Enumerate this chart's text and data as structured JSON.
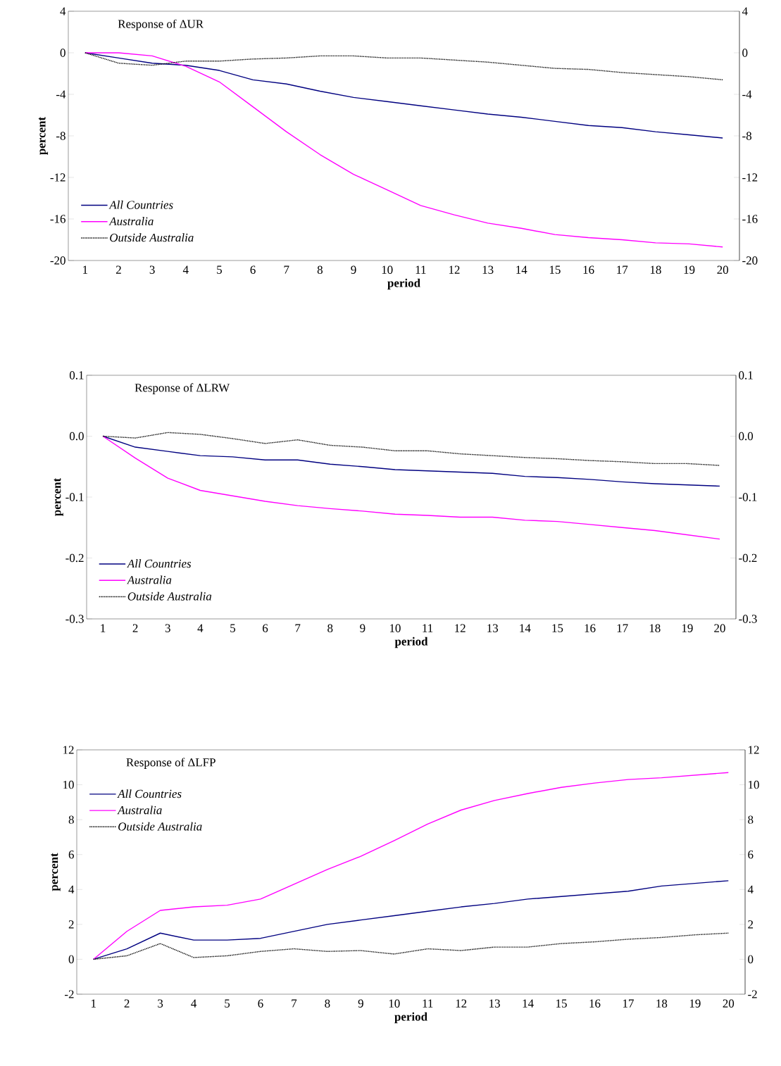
{
  "chart_data": [
    {
      "type": "line",
      "title": "Response of ΔUR",
      "xlabel": "period",
      "ylabel": "percent",
      "categories": [
        "1",
        "2",
        "3",
        "4",
        "5",
        "6",
        "7",
        "8",
        "9",
        "10",
        "11",
        "12",
        "13",
        "14",
        "15",
        "16",
        "17",
        "18",
        "19",
        "20"
      ],
      "series": [
        {
          "name": "All Countries",
          "color": "#000080",
          "line_style": "solid",
          "values": [
            0,
            -0.5,
            -1,
            -1.2,
            -1.7,
            -2.6,
            -3.0,
            -3.7,
            -4.3,
            -4.7,
            -5.1,
            -5.5,
            -5.9,
            -6.2,
            -6.6,
            -7.0,
            -7.2,
            -7.6,
            -7.9,
            -8.2
          ]
        },
        {
          "name": "Australia",
          "color": "#ff00ff",
          "line_style": "solid",
          "values": [
            0,
            0,
            -0.3,
            -1.3,
            -2.8,
            -5.2,
            -7.6,
            -9.8,
            -11.7,
            -13.2,
            -14.7,
            -15.6,
            -16.4,
            -16.9,
            -17.5,
            -17.8,
            -18.0,
            -18.3,
            -18.4,
            -18.7
          ]
        },
        {
          "name": "Outside Australia",
          "color": "#000000",
          "line_style": "dotted",
          "values": [
            0,
            -1,
            -1.2,
            -0.8,
            -0.8,
            -0.6,
            -0.5,
            -0.3,
            -0.3,
            -0.5,
            -0.5,
            -0.7,
            -0.9,
            -1.2,
            -1.5,
            -1.6,
            -1.9,
            -2.1,
            -2.3,
            -2.6
          ]
        }
      ],
      "ylim": [
        -20,
        4
      ],
      "yticks": [
        -20,
        -16,
        -12,
        -8,
        -4,
        0,
        4
      ],
      "y2lim": [
        -20,
        4
      ],
      "y2ticks": [
        -20,
        -16,
        -12,
        -8,
        -4,
        0,
        4
      ],
      "legend": "bottom left"
    },
    {
      "type": "line",
      "title": "Response of ΔLRW",
      "xlabel": "period",
      "ylabel": "percent",
      "categories": [
        "1",
        "2",
        "3",
        "4",
        "5",
        "6",
        "7",
        "8",
        "9",
        "10",
        "11",
        "12",
        "13",
        "14",
        "15",
        "16",
        "17",
        "18",
        "19",
        "20"
      ],
      "series": [
        {
          "name": "All Countries",
          "color": "#000080",
          "line_style": "solid",
          "values": [
            0,
            -0.018,
            -0.025,
            -0.032,
            -0.034,
            -0.039,
            -0.039,
            -0.046,
            -0.05,
            -0.055,
            -0.057,
            -0.059,
            -0.061,
            -0.066,
            -0.068,
            -0.071,
            -0.075,
            -0.078,
            -0.08,
            -0.082
          ]
        },
        {
          "name": "Australia",
          "color": "#ff00ff",
          "line_style": "solid",
          "values": [
            0,
            -0.036,
            -0.069,
            -0.089,
            -0.098,
            -0.107,
            -0.114,
            -0.119,
            -0.123,
            -0.128,
            -0.13,
            -0.133,
            -0.133,
            -0.138,
            -0.14,
            -0.145,
            -0.15,
            -0.155,
            -0.162,
            -0.169
          ]
        },
        {
          "name": "Outside Australia",
          "color": "#000000",
          "line_style": "dotted",
          "values": [
            0,
            -0.003,
            0.006,
            0.003,
            -0.004,
            -0.012,
            -0.006,
            -0.015,
            -0.018,
            -0.024,
            -0.024,
            -0.029,
            -0.032,
            -0.035,
            -0.037,
            -0.04,
            -0.042,
            -0.045,
            -0.045,
            -0.048
          ]
        }
      ],
      "ylim": [
        -0.3,
        0.1
      ],
      "yticks": [
        {
          "value": -0.3,
          "label": "-0.3"
        },
        {
          "value": -0.2,
          "label": "-0.2"
        },
        {
          "value": -0.1,
          "label": "-0.1"
        },
        {
          "value": 0,
          "label": "0.0"
        },
        {
          "value": 0.1,
          "label": "0.1"
        }
      ],
      "y2lim": [
        -0.3,
        0.1
      ],
      "y2ticks": [
        {
          "value": -0.3,
          "label": "-0.3"
        },
        {
          "value": -0.2,
          "label": "-0.2"
        },
        {
          "value": -0.1,
          "label": "-0.1"
        },
        {
          "value": 0,
          "label": "0.0"
        },
        {
          "value": 0.1,
          "label": "0.1"
        }
      ],
      "legend": "bottom left"
    },
    {
      "type": "line",
      "title": "Response of ΔLFP",
      "xlabel": "period",
      "ylabel": "percent",
      "categories": [
        "1",
        "2",
        "3",
        "4",
        "5",
        "6",
        "7",
        "8",
        "9",
        "10",
        "11",
        "12",
        "13",
        "14",
        "15",
        "16",
        "17",
        "18",
        "19",
        "20"
      ],
      "series": [
        {
          "name": "All Countries",
          "color": "#000080",
          "line_style": "solid",
          "values": [
            0,
            0.6,
            1.5,
            1.1,
            1.1,
            1.2,
            1.6,
            2.0,
            2.25,
            2.5,
            2.75,
            3.0,
            3.2,
            3.45,
            3.6,
            3.75,
            3.9,
            4.2,
            4.35,
            4.5
          ]
        },
        {
          "name": "Australia",
          "color": "#ff00ff",
          "line_style": "solid",
          "values": [
            0,
            1.6,
            2.8,
            3.0,
            3.1,
            3.45,
            4.3,
            5.15,
            5.9,
            6.8,
            7.75,
            8.55,
            9.1,
            9.5,
            9.85,
            10.1,
            10.3,
            10.4,
            10.55,
            10.7
          ]
        },
        {
          "name": "Outside Australia",
          "color": "#000000",
          "line_style": "dotted",
          "values": [
            0,
            0.2,
            0.9,
            0.1,
            0.2,
            0.45,
            0.6,
            0.45,
            0.5,
            0.3,
            0.6,
            0.5,
            0.7,
            0.7,
            0.9,
            1.0,
            1.15,
            1.25,
            1.4,
            1.5
          ]
        }
      ],
      "ylim": [
        -2,
        12
      ],
      "yticks": [
        -2,
        0,
        2,
        4,
        6,
        8,
        10,
        12
      ],
      "y2lim": [
        -2,
        12
      ],
      "y2ticks": [
        -2,
        0,
        2,
        4,
        6,
        8,
        10,
        12
      ],
      "legend": "top left"
    }
  ]
}
